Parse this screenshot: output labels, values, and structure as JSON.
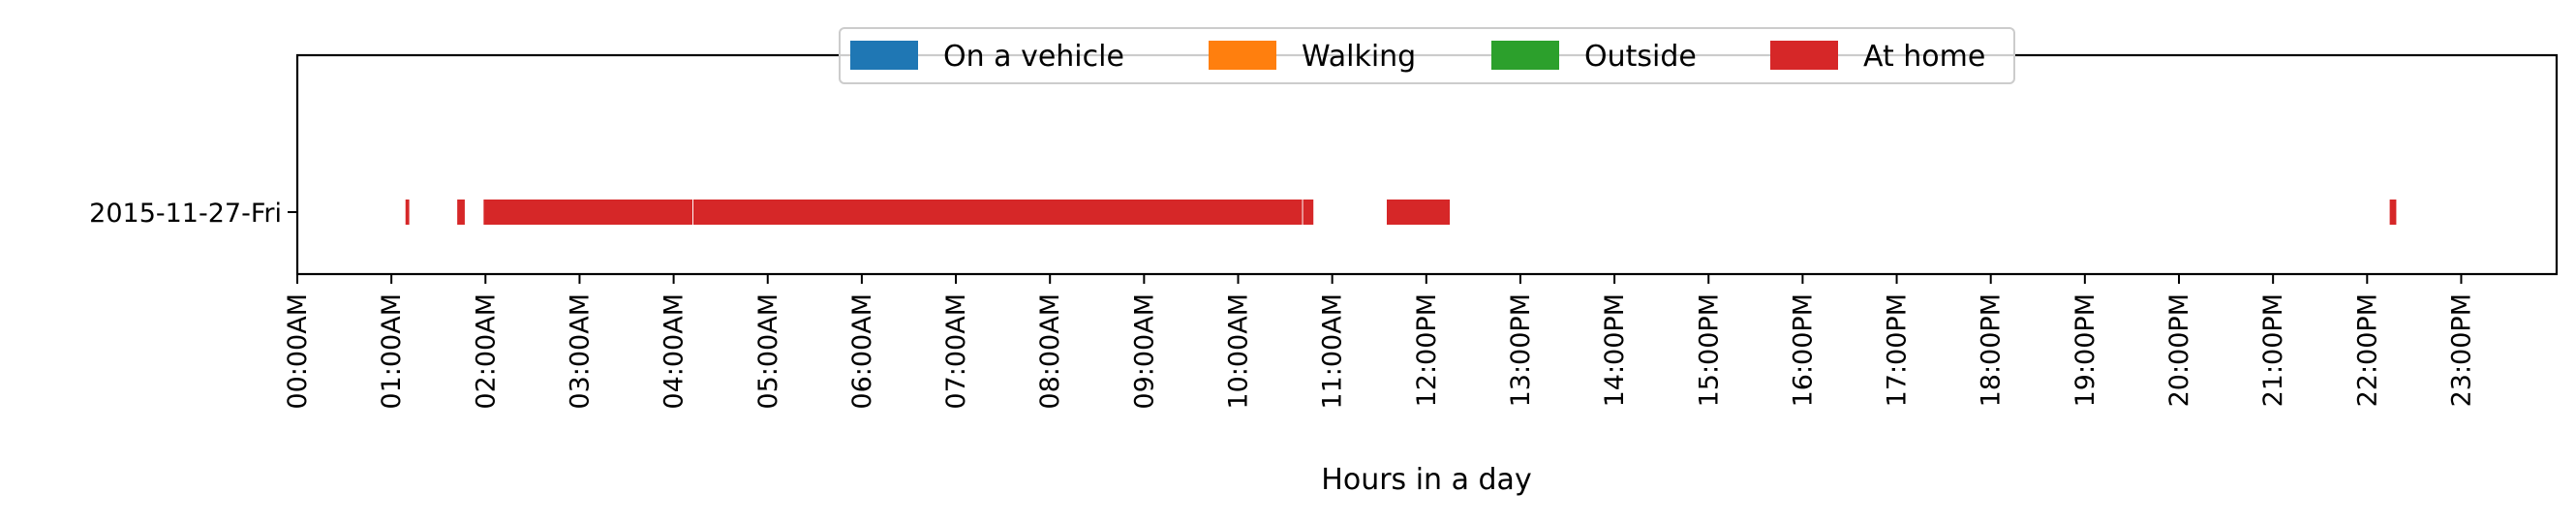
{
  "chart_data": {
    "type": "timeline",
    "xlabel": "Hours in a day",
    "ylabel": "",
    "xlim": [
      0,
      24
    ],
    "x_tick_labels": [
      "00:00AM",
      "01:00AM",
      "02:00AM",
      "03:00AM",
      "04:00AM",
      "05:00AM",
      "06:00AM",
      "07:00AM",
      "08:00AM",
      "09:00AM",
      "10:00AM",
      "11:00AM",
      "12:00PM",
      "13:00PM",
      "14:00PM",
      "15:00PM",
      "16:00PM",
      "17:00PM",
      "18:00PM",
      "19:00PM",
      "20:00PM",
      "21:00PM",
      "22:00PM",
      "23:00PM"
    ],
    "categories": [
      "2015-11-27-Fri"
    ],
    "grid": false,
    "legend": {
      "placement": "top-center",
      "entries": [
        {
          "name": "On a vehicle",
          "color": "#1f77b4"
        },
        {
          "name": "Walking",
          "color": "#ff7f0e"
        },
        {
          "name": "Outside",
          "color": "#2ca02c"
        },
        {
          "name": "At home",
          "color": "#d62728"
        }
      ]
    },
    "series": [
      {
        "name": "On a vehicle",
        "color": "#1f77b4",
        "intervals": []
      },
      {
        "name": "Walking",
        "color": "#ff7f0e",
        "intervals": []
      },
      {
        "name": "Outside",
        "color": "#2ca02c",
        "intervals": []
      },
      {
        "name": "At home",
        "color": "#d62728",
        "intervals": [
          {
            "day": "2015-11-27-Fri",
            "start": 1.15,
            "end": 1.19
          },
          {
            "day": "2015-11-27-Fri",
            "start": 1.7,
            "end": 1.78
          },
          {
            "day": "2015-11-27-Fri",
            "start": 1.98,
            "end": 4.2
          },
          {
            "day": "2015-11-27-Fri",
            "start": 4.21,
            "end": 10.68
          },
          {
            "day": "2015-11-27-Fri",
            "start": 10.69,
            "end": 10.8
          },
          {
            "day": "2015-11-27-Fri",
            "start": 11.58,
            "end": 12.25
          },
          {
            "day": "2015-11-27-Fri",
            "start": 22.24,
            "end": 22.31
          }
        ]
      }
    ]
  }
}
